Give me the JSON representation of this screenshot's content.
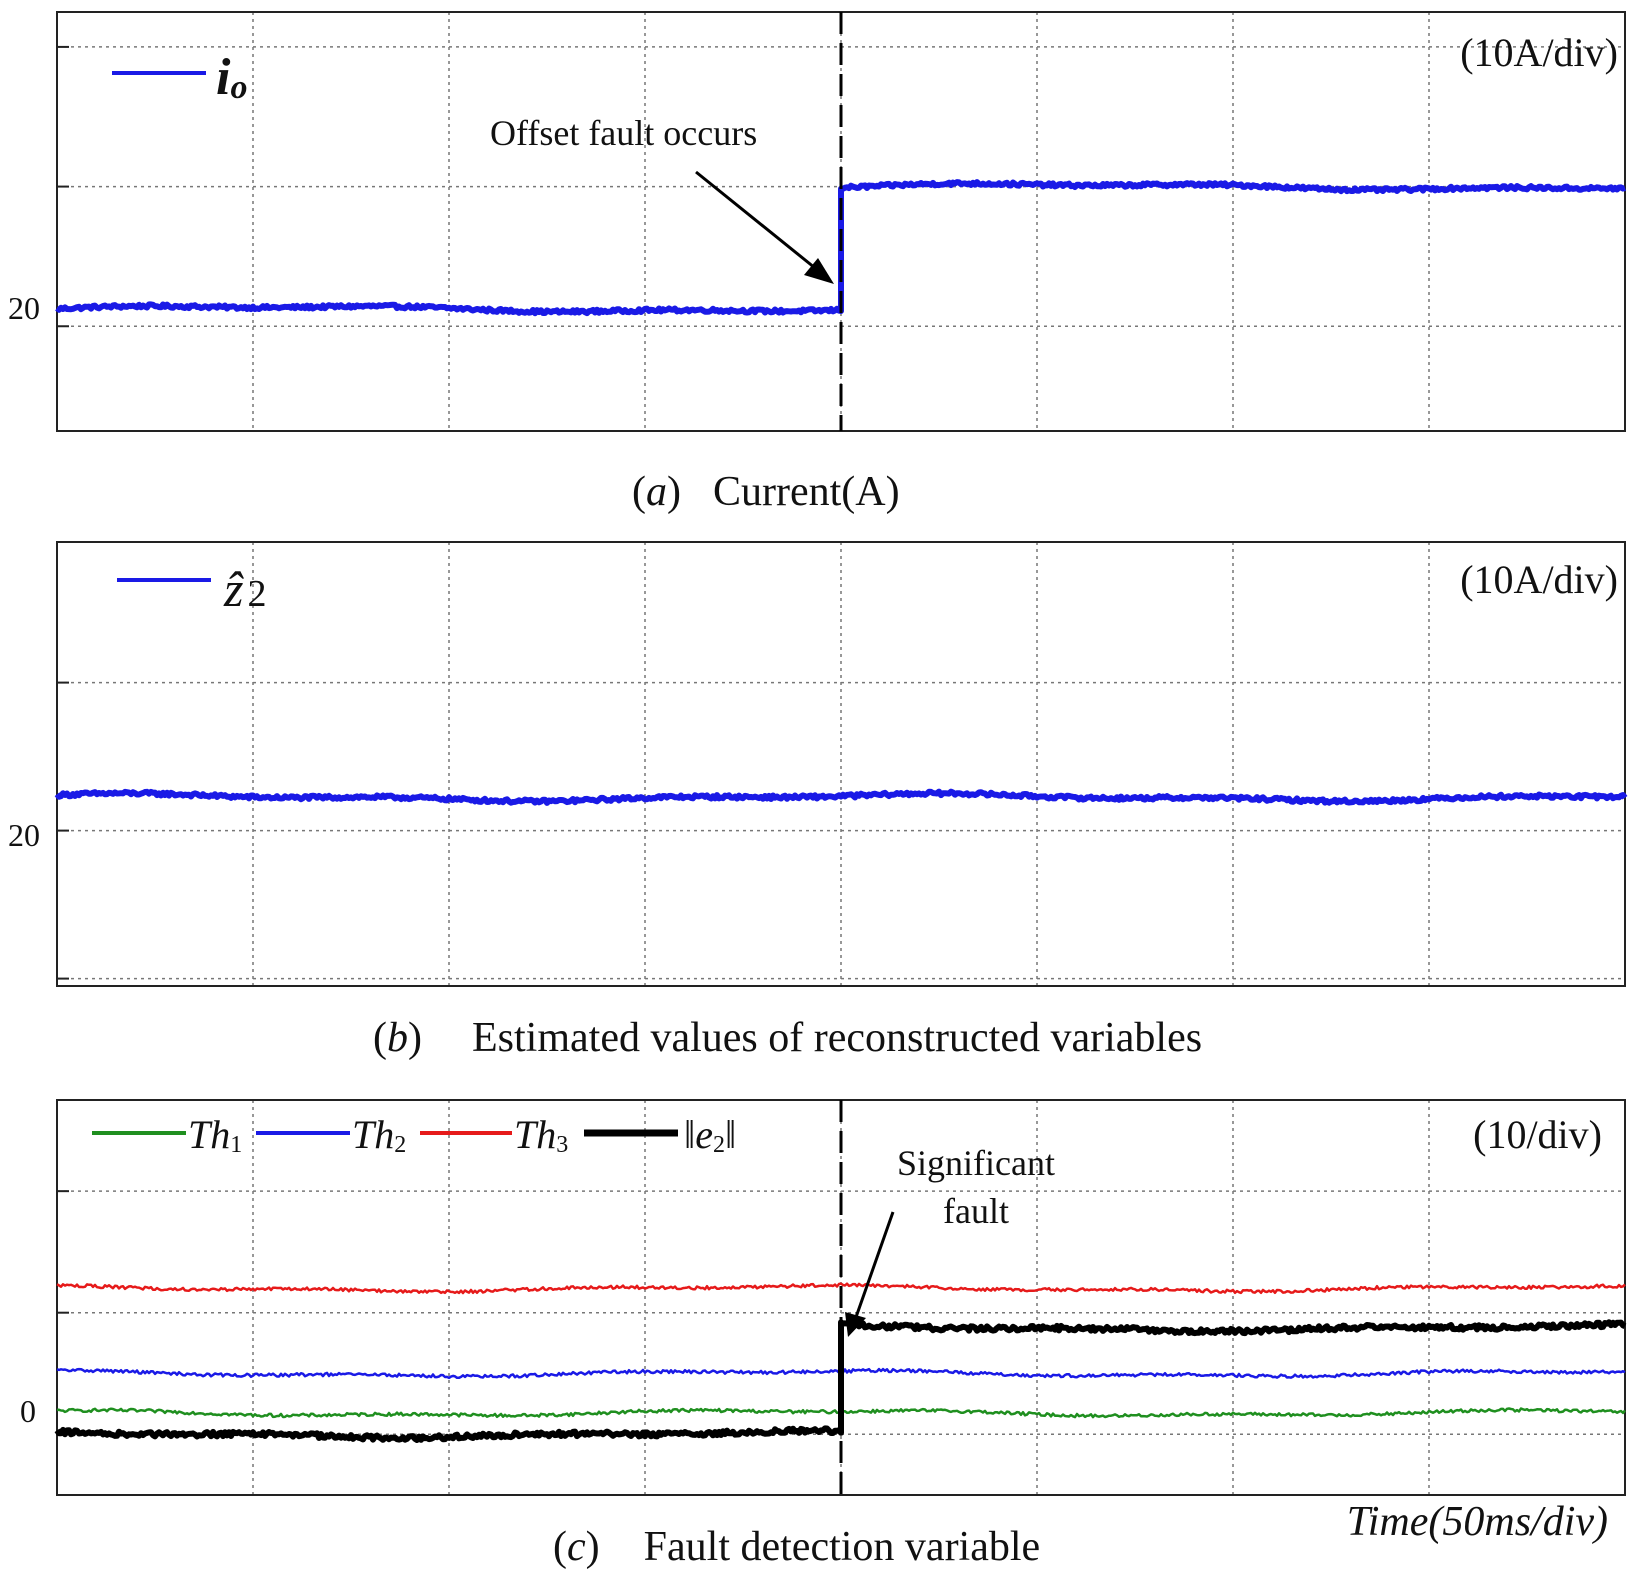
{
  "chart_data": [
    {
      "type": "line",
      "caption_label": "a",
      "caption_text": "Current(A)",
      "scale_label": "(10A/div)",
      "y_tick_label": "20",
      "y_unit": "A",
      "ylim": [
        5,
        65
      ],
      "xlim": [
        0,
        400
      ],
      "grid": true,
      "legend_position": "top-left",
      "x_gridlines": [
        50,
        100,
        150,
        200,
        250,
        300,
        350
      ],
      "y_gridlines": [
        20,
        40,
        60
      ],
      "fault_marker_x": 200,
      "annotation": "Offset fault occurs",
      "series": [
        {
          "name": "i_o",
          "name_main": "i",
          "name_sub": "o",
          "color": "#1a1ae6",
          "segments": [
            {
              "x_start": 0,
              "x_end": 200,
              "y": 22.5
            },
            {
              "x_start": 200,
              "x_end": 400,
              "y": 40
            }
          ]
        }
      ]
    },
    {
      "type": "line",
      "caption_label": "b",
      "caption_text": "Estimated values of reconstructed variables",
      "scale_label": "(10A/div)",
      "y_tick_label": "20",
      "y_unit": "A",
      "ylim": [
        -1,
        59
      ],
      "xlim": [
        0,
        400
      ],
      "grid": true,
      "legend_position": "top-left",
      "x_gridlines": [
        50,
        100,
        150,
        200,
        250,
        300,
        350
      ],
      "y_gridlines": [
        0,
        20,
        40,
        60
      ],
      "series": [
        {
          "name": "ẑ2",
          "name_main": "ẑ",
          "name_sub": "2",
          "color": "#1a1ae6",
          "segments": [
            {
              "x_start": 0,
              "x_end": 400,
              "y": 24.5
            }
          ]
        }
      ]
    },
    {
      "type": "line",
      "caption_label": "c",
      "caption_text": "Fault detection variable",
      "scale_label": "(10/div)",
      "x_label": "Time(50ms/div)",
      "y_tick_label": "0",
      "ylim": [
        -10,
        55
      ],
      "xlim": [
        0,
        400
      ],
      "grid": true,
      "legend_position": "top",
      "x_gridlines": [
        50,
        100,
        150,
        200,
        250,
        300,
        350
      ],
      "y_gridlines": [
        0,
        20,
        40
      ],
      "fault_marker_x": 200,
      "annotation": "Significant fault",
      "series": [
        {
          "name": "Th1",
          "name_main": "Th",
          "name_sub": "1",
          "color": "#1f8f1f",
          "segments": [
            {
              "x_start": 0,
              "x_end": 400,
              "y": 3.5
            }
          ]
        },
        {
          "name": "Th2",
          "name_main": "Th",
          "name_sub": "2",
          "color": "#1a1ae6",
          "segments": [
            {
              "x_start": 0,
              "x_end": 400,
              "y": 10
            }
          ]
        },
        {
          "name": "Th3",
          "name_main": "Th",
          "name_sub": "3",
          "color": "#e61a1a",
          "segments": [
            {
              "x_start": 0,
              "x_end": 400,
              "y": 24
            }
          ]
        },
        {
          "name": "‖e2‖",
          "name_main": "‖e",
          "name_sub": "2",
          "name_tail": "‖",
          "color": "#000000",
          "segments": [
            {
              "x_start": 0,
              "x_end": 200,
              "y": 0
            },
            {
              "x_start": 200,
              "x_end": 400,
              "y": 17.5
            }
          ]
        }
      ]
    }
  ]
}
